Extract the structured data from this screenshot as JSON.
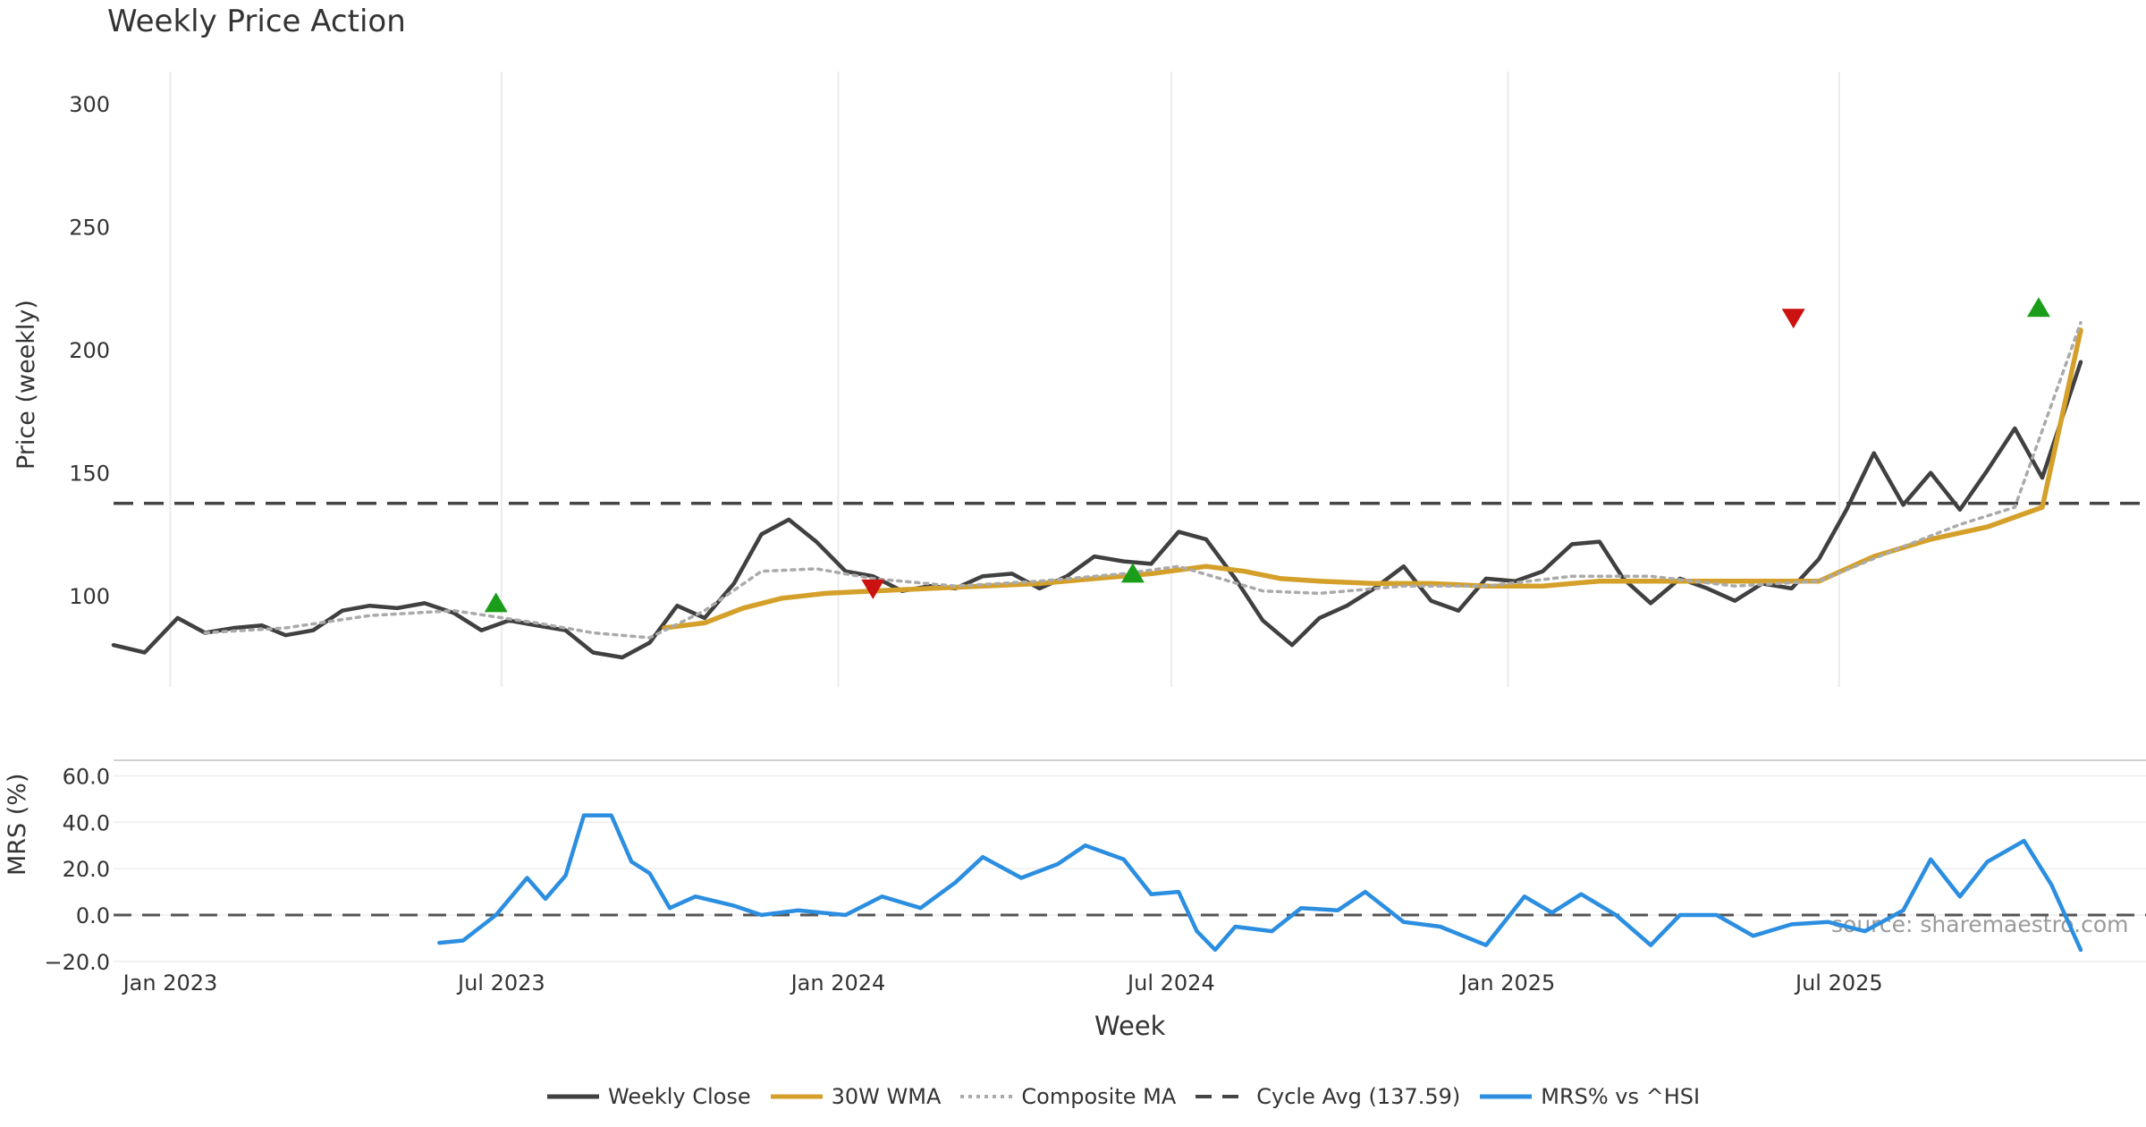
{
  "chart_data": [
    {
      "type": "line",
      "title": "Weekly Price Action",
      "xlabel": "",
      "ylabel": "Price (weekly)",
      "ylim": [
        63,
        313
      ],
      "yticks": [
        100,
        150,
        200,
        250,
        300
      ],
      "grid": "vertical",
      "x_start": "2022-12-01",
      "x_end": "2025-11-10",
      "x_ticks": [
        {
          "date": "2023-01-01",
          "label": "Jan 2023"
        },
        {
          "date": "2023-07-01",
          "label": "Jul 2023"
        },
        {
          "date": "2024-01-01",
          "label": "Jan 2024"
        },
        {
          "date": "2024-07-01",
          "label": "Jul 2024"
        },
        {
          "date": "2025-01-01",
          "label": "Jan 2025"
        },
        {
          "date": "2025-07-01",
          "label": "Jul 2025"
        }
      ],
      "reference_line": {
        "name": "Cycle Avg (137.59)",
        "value": 137.59
      },
      "series": [
        {
          "name": "Weekly Close",
          "color": "#404040",
          "points": [
            [
              "2022-12-01",
              80
            ],
            [
              "2022-12-18",
              77
            ],
            [
              "2023-01-05",
              91
            ],
            [
              "2023-01-20",
              85
            ],
            [
              "2023-02-05",
              87
            ],
            [
              "2023-02-20",
              88
            ],
            [
              "2023-03-05",
              84
            ],
            [
              "2023-03-20",
              86
            ],
            [
              "2023-04-05",
              94
            ],
            [
              "2023-04-20",
              96
            ],
            [
              "2023-05-05",
              95
            ],
            [
              "2023-05-20",
              97
            ],
            [
              "2023-06-05",
              93
            ],
            [
              "2023-06-20",
              86
            ],
            [
              "2023-07-05",
              90
            ],
            [
              "2023-07-20",
              88
            ],
            [
              "2023-08-05",
              86
            ],
            [
              "2023-08-20",
              77
            ],
            [
              "2023-09-05",
              75
            ],
            [
              "2023-09-20",
              81
            ],
            [
              "2023-10-05",
              96
            ],
            [
              "2023-10-20",
              91
            ],
            [
              "2023-11-05",
              105
            ],
            [
              "2023-11-20",
              125
            ],
            [
              "2023-12-05",
              131
            ],
            [
              "2023-12-20",
              122
            ],
            [
              "2024-01-05",
              110
            ],
            [
              "2024-01-20",
              108
            ],
            [
              "2024-02-05",
              102
            ],
            [
              "2024-02-20",
              104
            ],
            [
              "2024-03-05",
              103
            ],
            [
              "2024-03-20",
              108
            ],
            [
              "2024-04-05",
              109
            ],
            [
              "2024-04-20",
              103
            ],
            [
              "2024-05-05",
              108
            ],
            [
              "2024-05-20",
              116
            ],
            [
              "2024-06-05",
              114
            ],
            [
              "2024-06-20",
              113
            ],
            [
              "2024-07-05",
              126
            ],
            [
              "2024-07-20",
              123
            ],
            [
              "2024-08-05",
              107
            ],
            [
              "2024-08-20",
              90
            ],
            [
              "2024-09-05",
              80
            ],
            [
              "2024-09-20",
              91
            ],
            [
              "2024-10-05",
              96
            ],
            [
              "2024-10-20",
              103
            ],
            [
              "2024-11-05",
              112
            ],
            [
              "2024-11-20",
              98
            ],
            [
              "2024-12-05",
              94
            ],
            [
              "2024-12-20",
              107
            ],
            [
              "2025-01-05",
              106
            ],
            [
              "2025-01-20",
              110
            ],
            [
              "2025-02-05",
              121
            ],
            [
              "2025-02-20",
              122
            ],
            [
              "2025-03-05",
              107
            ],
            [
              "2025-03-20",
              97
            ],
            [
              "2025-04-05",
              107
            ],
            [
              "2025-04-20",
              103
            ],
            [
              "2025-05-05",
              98
            ],
            [
              "2025-05-20",
              105
            ],
            [
              "2025-06-05",
              103
            ],
            [
              "2025-06-20",
              115
            ],
            [
              "2025-07-05",
              135
            ],
            [
              "2025-07-20",
              158
            ],
            [
              "2025-08-05",
              137
            ],
            [
              "2025-08-20",
              150
            ],
            [
              "2025-09-05",
              135
            ],
            [
              "2025-09-20",
              151
            ],
            [
              "2025-10-05",
              168
            ],
            [
              "2025-10-20",
              148
            ],
            [
              "2025-11-10",
              195
            ]
          ]
        },
        {
          "name": "30W WMA",
          "color": "#d4a02a",
          "points": [
            [
              "2023-09-28",
              87
            ],
            [
              "2023-10-20",
              89
            ],
            [
              "2023-11-10",
              95
            ],
            [
              "2023-12-01",
              99
            ],
            [
              "2023-12-25",
              101
            ],
            [
              "2024-01-20",
              102
            ],
            [
              "2024-02-20",
              103
            ],
            [
              "2024-03-20",
              104
            ],
            [
              "2024-04-20",
              105
            ],
            [
              "2024-05-20",
              107
            ],
            [
              "2024-06-20",
              109
            ],
            [
              "2024-07-20",
              112
            ],
            [
              "2024-08-10",
              110
            ],
            [
              "2024-08-30",
              107
            ],
            [
              "2024-09-20",
              106
            ],
            [
              "2024-10-20",
              105
            ],
            [
              "2024-11-20",
              105
            ],
            [
              "2024-12-20",
              104
            ],
            [
              "2025-01-20",
              104
            ],
            [
              "2025-02-20",
              106
            ],
            [
              "2025-03-20",
              106
            ],
            [
              "2025-04-20",
              106
            ],
            [
              "2025-05-20",
              106
            ],
            [
              "2025-06-20",
              106
            ],
            [
              "2025-07-20",
              116
            ],
            [
              "2025-08-20",
              123
            ],
            [
              "2025-09-20",
              128
            ],
            [
              "2025-10-20",
              136
            ],
            [
              "2025-11-10",
              208
            ]
          ]
        },
        {
          "name": "Composite MA",
          "color": "#aaaaaa",
          "points": [
            [
              "2023-01-20",
              85
            ],
            [
              "2023-03-05",
              87
            ],
            [
              "2023-04-20",
              92
            ],
            [
              "2023-06-05",
              94
            ],
            [
              "2023-07-20",
              89
            ],
            [
              "2023-08-20",
              85
            ],
            [
              "2023-09-20",
              83
            ],
            [
              "2023-10-20",
              94
            ],
            [
              "2023-11-20",
              110
            ],
            [
              "2023-12-20",
              111
            ],
            [
              "2024-01-20",
              107
            ],
            [
              "2024-03-05",
              104
            ],
            [
              "2024-04-20",
              106
            ],
            [
              "2024-06-05",
              109
            ],
            [
              "2024-07-05",
              112
            ],
            [
              "2024-08-20",
              102
            ],
            [
              "2024-09-20",
              101
            ],
            [
              "2024-11-05",
              104
            ],
            [
              "2024-12-20",
              104
            ],
            [
              "2025-02-05",
              108
            ],
            [
              "2025-03-20",
              108
            ],
            [
              "2025-05-05",
              104
            ],
            [
              "2025-06-20",
              106
            ],
            [
              "2025-08-05",
              120
            ],
            [
              "2025-09-05",
              129
            ],
            [
              "2025-10-05",
              136
            ],
            [
              "2025-11-10",
              211
            ]
          ]
        }
      ],
      "signals": [
        {
          "type": "buy",
          "color": "#1a9e1a",
          "date": "2023-06-28",
          "value": 97
        },
        {
          "type": "sell",
          "color": "#cc1111",
          "date": "2024-01-20",
          "value": 103
        },
        {
          "type": "buy",
          "color": "#1a9e1a",
          "date": "2024-06-10",
          "value": 109
        },
        {
          "type": "sell",
          "color": "#cc1111",
          "date": "2025-06-06",
          "value": 213
        },
        {
          "type": "buy",
          "color": "#1a9e1a",
          "date": "2025-10-18",
          "value": 217
        }
      ]
    },
    {
      "type": "line",
      "title": "",
      "xlabel": "Week",
      "ylabel": "MRS (%)",
      "ylim": [
        -22,
        66
      ],
      "yticks": [
        {
          "value": 60,
          "label": "60.0"
        },
        {
          "value": 40,
          "label": "40.0"
        },
        {
          "value": 20,
          "label": "20.0"
        },
        {
          "value": 0,
          "label": "0.0"
        },
        {
          "value": -20,
          "label": "−20.0"
        }
      ],
      "zero_line": 0,
      "series": [
        {
          "name": "MRS% vs ^HSI",
          "color": "#2b8ee0",
          "points": [
            [
              "2023-05-28",
              -12
            ],
            [
              "2023-06-10",
              -11
            ],
            [
              "2023-06-28",
              0
            ],
            [
              "2023-07-15",
              16
            ],
            [
              "2023-07-25",
              7
            ],
            [
              "2023-08-05",
              17
            ],
            [
              "2023-08-15",
              43
            ],
            [
              "2023-08-30",
              43
            ],
            [
              "2023-09-10",
              23
            ],
            [
              "2023-09-20",
              18
            ],
            [
              "2023-10-01",
              3
            ],
            [
              "2023-10-15",
              8
            ],
            [
              "2023-11-05",
              4
            ],
            [
              "2023-11-20",
              0
            ],
            [
              "2023-12-10",
              2
            ],
            [
              "2024-01-05",
              0
            ],
            [
              "2024-01-25",
              8
            ],
            [
              "2024-02-15",
              3
            ],
            [
              "2024-03-05",
              14
            ],
            [
              "2024-03-20",
              25
            ],
            [
              "2024-04-10",
              16
            ],
            [
              "2024-04-30",
              22
            ],
            [
              "2024-05-15",
              30
            ],
            [
              "2024-06-05",
              24
            ],
            [
              "2024-06-20",
              9
            ],
            [
              "2024-07-05",
              10
            ],
            [
              "2024-07-15",
              -7
            ],
            [
              "2024-07-25",
              -15
            ],
            [
              "2024-08-05",
              -5
            ],
            [
              "2024-08-25",
              -7
            ],
            [
              "2024-09-10",
              3
            ],
            [
              "2024-09-30",
              2
            ],
            [
              "2024-10-15",
              10
            ],
            [
              "2024-11-05",
              -3
            ],
            [
              "2024-11-25",
              -5
            ],
            [
              "2024-12-20",
              -13
            ],
            [
              "2025-01-10",
              8
            ],
            [
              "2025-01-25",
              1
            ],
            [
              "2025-02-10",
              9
            ],
            [
              "2025-03-01",
              0
            ],
            [
              "2025-03-20",
              -13
            ],
            [
              "2025-04-05",
              0
            ],
            [
              "2025-04-25",
              0
            ],
            [
              "2025-05-15",
              -9
            ],
            [
              "2025-06-05",
              -4
            ],
            [
              "2025-06-25",
              -3
            ],
            [
              "2025-07-15",
              -7
            ],
            [
              "2025-08-05",
              2
            ],
            [
              "2025-08-20",
              24
            ],
            [
              "2025-09-05",
              8
            ],
            [
              "2025-09-20",
              23
            ],
            [
              "2025-10-10",
              32
            ],
            [
              "2025-10-25",
              13
            ],
            [
              "2025-11-10",
              -15
            ]
          ]
        }
      ]
    }
  ],
  "legend": [
    {
      "label": "Weekly Close",
      "color": "#404040",
      "style": "solid"
    },
    {
      "label": "30W WMA",
      "color": "#d4a02a",
      "style": "solid"
    },
    {
      "label": "Composite MA",
      "color": "#aaaaaa",
      "style": "dotted"
    },
    {
      "label": "Cycle Avg (137.59)",
      "color": "#444444",
      "style": "dashed"
    },
    {
      "label": "MRS% vs ^HSI",
      "color": "#2b8ee0",
      "style": "solid"
    }
  ],
  "watermark": "source: sharemaestro.com"
}
